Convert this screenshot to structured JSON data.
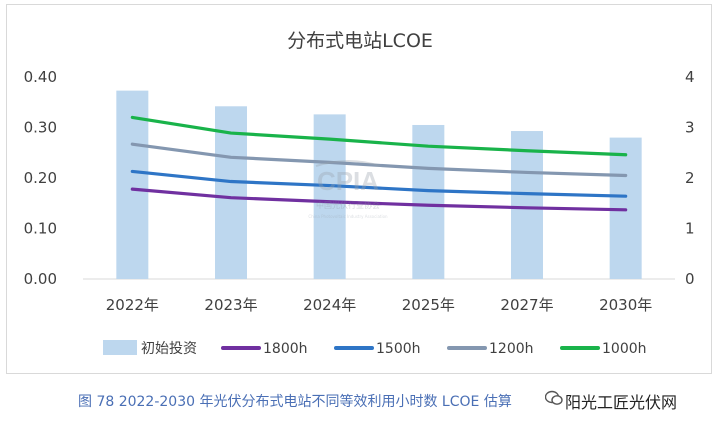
{
  "chart_data": {
    "type": "bar+line",
    "title": "分布式电站LCOE",
    "categories": [
      "2022年",
      "2023年",
      "2024年",
      "2025年",
      "2027年",
      "2030年"
    ],
    "y_left": {
      "ticks": [
        "0.00",
        "0.10",
        "0.20",
        "0.30",
        "0.40"
      ],
      "range": [
        0,
        0.4
      ]
    },
    "y_right": {
      "ticks": [
        "0",
        "1",
        "2",
        "3",
        "4"
      ],
      "range": [
        0,
        4
      ]
    },
    "bars": {
      "name": "初始投资",
      "axis": "right",
      "color": "#bdd7ee",
      "values": [
        3.73,
        3.42,
        3.26,
        3.05,
        2.93,
        2.8
      ]
    },
    "series": [
      {
        "name": "1800h",
        "axis": "left",
        "color": "#7030a0",
        "values": [
          0.178,
          0.161,
          0.153,
          0.146,
          0.141,
          0.137
        ]
      },
      {
        "name": "1500h",
        "axis": "left",
        "color": "#2e75c6",
        "values": [
          0.213,
          0.193,
          0.185,
          0.175,
          0.169,
          0.164
        ]
      },
      {
        "name": "1200h",
        "axis": "left",
        "color": "#8497b0",
        "values": [
          0.267,
          0.241,
          0.231,
          0.219,
          0.211,
          0.205
        ]
      },
      {
        "name": "1000h",
        "axis": "left",
        "color": "#19b34a",
        "values": [
          0.32,
          0.289,
          0.277,
          0.263,
          0.254,
          0.246
        ]
      }
    ],
    "grid": false,
    "legend": "bottom"
  },
  "caption": "图 78   2022-2030 年光伏分布式电站不同等效利用小时数 LCOE 估算",
  "watermark": {
    "logo": "CPIA",
    "org": "中国光伏行业协会",
    "handle": "阳光工匠光伏网"
  }
}
